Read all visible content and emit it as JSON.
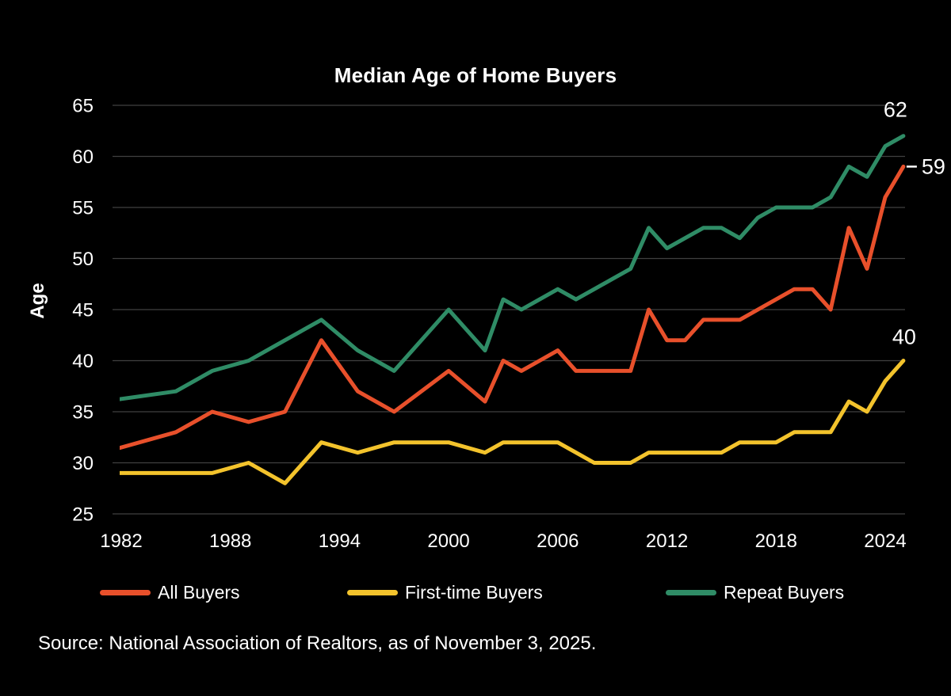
{
  "chart": {
    "title": "Median Age of Home Buyers",
    "y_axis_title": "Age",
    "source": "Source: National Association of Realtors, as of November 3, 2025.",
    "background_color": "#000000",
    "grid_color": "#404040",
    "text_color": "#ffffff"
  },
  "chart_data": {
    "type": "line",
    "title": "Median Age of Home Buyers",
    "xlabel": "",
    "ylabel": "Age",
    "xlim": [
      1982,
      2025
    ],
    "ylim": [
      25,
      65
    ],
    "x_ticks": [
      1982,
      1988,
      1994,
      2000,
      2006,
      2012,
      2018,
      2024
    ],
    "y_ticks": [
      25,
      30,
      35,
      40,
      45,
      50,
      55,
      60,
      65
    ],
    "grid": "horizontal",
    "legend_position": "bottom",
    "series": [
      {
        "name": "All Buyers",
        "color": "#e8502b",
        "end_label": "59",
        "points": [
          [
            1981,
            31
          ],
          [
            1985,
            33
          ],
          [
            1987,
            35
          ],
          [
            1989,
            34
          ],
          [
            1991,
            35
          ],
          [
            1993,
            42
          ],
          [
            1995,
            37
          ],
          [
            1997,
            35
          ],
          [
            2000,
            39
          ],
          [
            2002,
            36
          ],
          [
            2003,
            40
          ],
          [
            2004,
            39
          ],
          [
            2005,
            40
          ],
          [
            2006,
            41
          ],
          [
            2007,
            39
          ],
          [
            2008,
            39
          ],
          [
            2009,
            39
          ],
          [
            2010,
            39
          ],
          [
            2011,
            45
          ],
          [
            2012,
            42
          ],
          [
            2013,
            42
          ],
          [
            2014,
            44
          ],
          [
            2015,
            44
          ],
          [
            2016,
            44
          ],
          [
            2017,
            45
          ],
          [
            2018,
            46
          ],
          [
            2019,
            47
          ],
          [
            2020,
            47
          ],
          [
            2021,
            45
          ],
          [
            2022,
            53
          ],
          [
            2023,
            49
          ],
          [
            2024,
            56
          ],
          [
            2025,
            59
          ]
        ]
      },
      {
        "name": "First-time Buyers",
        "color": "#f3c32c",
        "end_label": "40",
        "points": [
          [
            1981,
            29
          ],
          [
            1985,
            29
          ],
          [
            1987,
            29
          ],
          [
            1989,
            30
          ],
          [
            1991,
            28
          ],
          [
            1993,
            32
          ],
          [
            1995,
            31
          ],
          [
            1997,
            32
          ],
          [
            2000,
            32
          ],
          [
            2002,
            31
          ],
          [
            2003,
            32
          ],
          [
            2004,
            32
          ],
          [
            2005,
            32
          ],
          [
            2006,
            32
          ],
          [
            2007,
            31
          ],
          [
            2008,
            30
          ],
          [
            2009,
            30
          ],
          [
            2010,
            30
          ],
          [
            2011,
            31
          ],
          [
            2012,
            31
          ],
          [
            2013,
            31
          ],
          [
            2014,
            31
          ],
          [
            2015,
            31
          ],
          [
            2016,
            32
          ],
          [
            2017,
            32
          ],
          [
            2018,
            32
          ],
          [
            2019,
            33
          ],
          [
            2020,
            33
          ],
          [
            2021,
            33
          ],
          [
            2022,
            36
          ],
          [
            2023,
            35
          ],
          [
            2024,
            38
          ],
          [
            2025,
            40
          ]
        ]
      },
      {
        "name": "Repeat Buyers",
        "color": "#2f8c66",
        "end_label": "62",
        "points": [
          [
            1981,
            36
          ],
          [
            1985,
            37
          ],
          [
            1987,
            39
          ],
          [
            1989,
            40
          ],
          [
            1991,
            42
          ],
          [
            1993,
            44
          ],
          [
            1995,
            41
          ],
          [
            1997,
            39
          ],
          [
            2000,
            45
          ],
          [
            2002,
            41
          ],
          [
            2003,
            46
          ],
          [
            2004,
            45
          ],
          [
            2005,
            46
          ],
          [
            2006,
            47
          ],
          [
            2007,
            46
          ],
          [
            2008,
            47
          ],
          [
            2009,
            48
          ],
          [
            2010,
            49
          ],
          [
            2011,
            53
          ],
          [
            2012,
            51
          ],
          [
            2013,
            52
          ],
          [
            2014,
            53
          ],
          [
            2015,
            53
          ],
          [
            2016,
            52
          ],
          [
            2017,
            54
          ],
          [
            2018,
            55
          ],
          [
            2019,
            55
          ],
          [
            2020,
            55
          ],
          [
            2021,
            56
          ],
          [
            2022,
            59
          ],
          [
            2023,
            58
          ],
          [
            2024,
            61
          ],
          [
            2025,
            62
          ]
        ]
      }
    ]
  }
}
